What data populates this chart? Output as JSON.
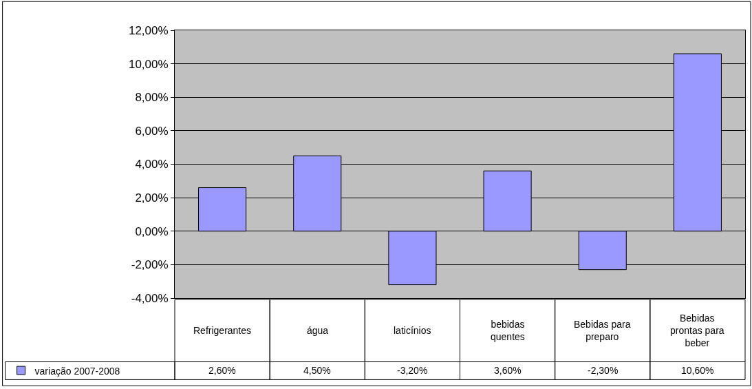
{
  "chart_data": {
    "type": "bar",
    "categories": [
      "Refrigerantes",
      "água",
      "laticínios",
      "bebidas quentes",
      "Bebidas para preparo",
      "Bebidas prontas para beber"
    ],
    "series": [
      {
        "name": "variação 2007-2008",
        "color": "#9999ff",
        "values": [
          2.6,
          4.5,
          -3.2,
          3.6,
          -2.3,
          10.6
        ],
        "value_labels": [
          "2,60%",
          "4,50%",
          "-3,20%",
          "3,60%",
          "-2,30%",
          "10,60%"
        ]
      }
    ],
    "ylim": [
      -4,
      12
    ],
    "yticks": [
      {
        "value": -4,
        "label": "-4,00%"
      },
      {
        "value": -2,
        "label": "-2,00%"
      },
      {
        "value": 0,
        "label": "0,00%"
      },
      {
        "value": 2,
        "label": "2,00%"
      },
      {
        "value": 4,
        "label": "4,00%"
      },
      {
        "value": 6,
        "label": "6,00%"
      },
      {
        "value": 8,
        "label": "8,00%"
      },
      {
        "value": 10,
        "label": "10,00%"
      },
      {
        "value": 12,
        "label": "12,00%"
      }
    ],
    "grid": "y",
    "legend": "bottom left"
  }
}
